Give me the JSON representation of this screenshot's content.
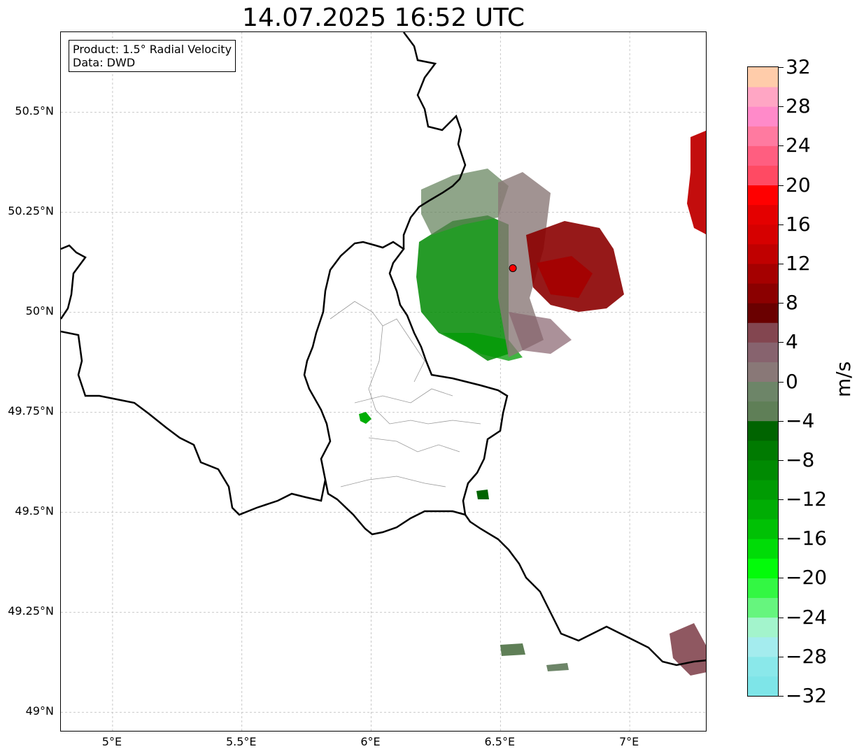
{
  "title": "14.07.2025 16:52 UTC",
  "info_box": {
    "product": "Product: 1.5° Radial Velocity",
    "data": "Data: DWD"
  },
  "map": {
    "lon_range": [
      4.8,
      7.3
    ],
    "lat_range": [
      48.95,
      50.7
    ],
    "lat_ticks": [
      {
        "value": 50.5,
        "label": "50.5°N"
      },
      {
        "value": 50.25,
        "label": "50.25°N"
      },
      {
        "value": 50.0,
        "label": "50°N"
      },
      {
        "value": 49.75,
        "label": "49.75°N"
      },
      {
        "value": 49.5,
        "label": "49.5°N"
      },
      {
        "value": 49.25,
        "label": "49.25°N"
      },
      {
        "value": 49.0,
        "label": "49°N"
      }
    ],
    "lon_ticks": [
      {
        "value": 5.0,
        "label": "5°E"
      },
      {
        "value": 5.5,
        "label": "5.5°E"
      },
      {
        "value": 6.0,
        "label": "6°E"
      },
      {
        "value": 6.5,
        "label": "6.5°E"
      },
      {
        "value": 7.0,
        "label": "7°E"
      }
    ],
    "gridlines": true,
    "radar_site": {
      "lon": 6.548,
      "lat": 50.11,
      "color": "#ff0000"
    }
  },
  "colorbar": {
    "unit": "m/s",
    "min": -32,
    "max": 32,
    "colors": [
      "#7ee5e8",
      "#8ae8ea",
      "#a4ecee",
      "#a3f4cc",
      "#66f57e",
      "#33f743",
      "#03fb0a",
      "#00dc07",
      "#00c105",
      "#00ad04",
      "#009b03",
      "#008a02",
      "#007a01",
      "#006400",
      "#5f7f57",
      "#6d8568",
      "#897877",
      "#87636e",
      "#834650",
      "#6a0000",
      "#8b0000",
      "#a50000",
      "#c00000",
      "#d60000",
      "#e40000",
      "#ff0000",
      "#ff4a63",
      "#ff5e80",
      "#ff7aa0",
      "#ff8ac9",
      "#ffa6c4",
      "#ffccaa"
    ],
    "tick_labels": [
      {
        "value": 32,
        "label": "32"
      },
      {
        "value": 28,
        "label": "28"
      },
      {
        "value": 24,
        "label": "24"
      },
      {
        "value": 20,
        "label": "20"
      },
      {
        "value": 16,
        "label": "16"
      },
      {
        "value": 12,
        "label": "12"
      },
      {
        "value": 8,
        "label": "8"
      },
      {
        "value": 4,
        "label": "4"
      },
      {
        "value": 0,
        "label": "0"
      },
      {
        "value": -4,
        "label": "−4"
      },
      {
        "value": -8,
        "label": "−8"
      },
      {
        "value": -12,
        "label": "−12"
      },
      {
        "value": -16,
        "label": "−16"
      },
      {
        "value": -20,
        "label": "−20"
      },
      {
        "value": -24,
        "label": "−24"
      },
      {
        "value": -28,
        "label": "−28"
      },
      {
        "value": -32,
        "label": "−32"
      }
    ]
  }
}
